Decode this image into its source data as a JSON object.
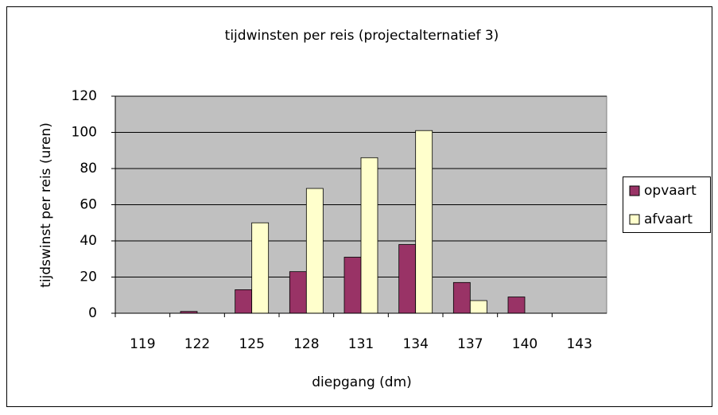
{
  "chart_data": {
    "type": "bar",
    "title": "tijdwinsten per reis (projectalternatief 3)",
    "x_label": "diepgang (dm)",
    "y_label": "tijdswinst per reis (uren)",
    "categories": [
      "119",
      "122",
      "125",
      "128",
      "131",
      "134",
      "137",
      "140",
      "143"
    ],
    "series": [
      {
        "name": "opvaart",
        "color": "#993366",
        "values": [
          0,
          1,
          13,
          23,
          31,
          38,
          17,
          9,
          0
        ]
      },
      {
        "name": "afvaart",
        "color": "#ffffcc",
        "values": [
          0,
          0,
          50,
          69,
          86,
          101,
          7,
          0,
          0
        ]
      }
    ],
    "ylim": [
      0,
      120
    ],
    "yticks": [
      0,
      20,
      40,
      60,
      80,
      100,
      120
    ],
    "grid": true,
    "legend": "right"
  }
}
